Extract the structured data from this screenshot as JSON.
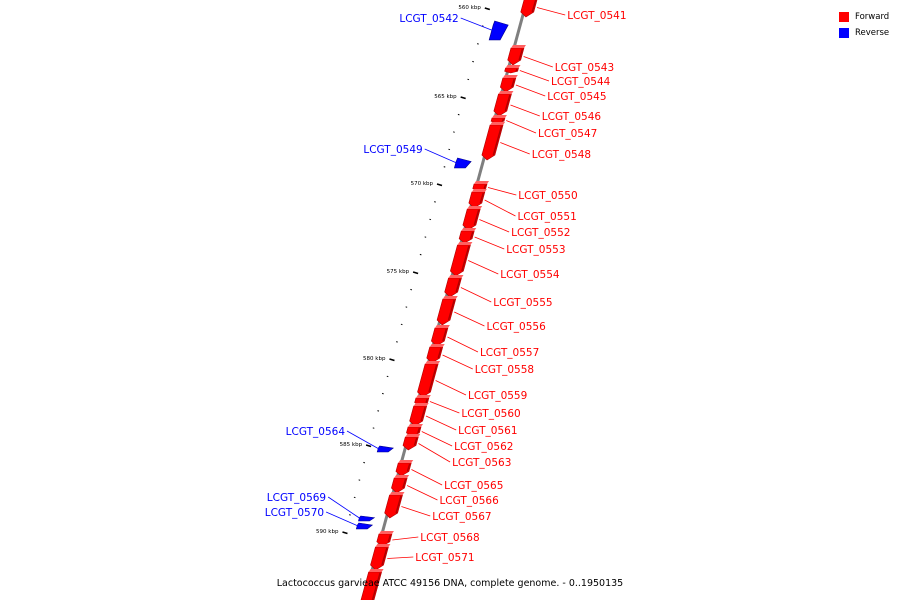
{
  "caption": "Lactococcus garvieae ATCC 49156 DNA, complete genome. - 0..1950135",
  "legend": [
    {
      "label": "Forward",
      "color": "#ff0000"
    },
    {
      "label": "Reverse",
      "color": "#0000ff"
    }
  ],
  "colors": {
    "forward": "#ff0000",
    "forward_dark": "#b00000",
    "reverse": "#0000ff",
    "reverse_dark": "#00008a",
    "backbone": "#7f7f7f"
  },
  "ticks": [
    {
      "label": "560 kbp"
    },
    {
      "label": "565 kbp"
    },
    {
      "label": "570 kbp"
    },
    {
      "label": "575 kbp"
    },
    {
      "label": "580 kbp"
    },
    {
      "label": "585 kbp"
    },
    {
      "label": "590 kbp"
    }
  ],
  "genes": [
    {
      "id": "LCGT_0541",
      "strand": "forward"
    },
    {
      "id": "LCGT_0542",
      "strand": "reverse"
    },
    {
      "id": "LCGT_0543",
      "strand": "forward"
    },
    {
      "id": "LCGT_0544",
      "strand": "forward"
    },
    {
      "id": "LCGT_0545",
      "strand": "forward"
    },
    {
      "id": "LCGT_0546",
      "strand": "forward"
    },
    {
      "id": "LCGT_0547",
      "strand": "forward"
    },
    {
      "id": "LCGT_0548",
      "strand": "forward"
    },
    {
      "id": "LCGT_0549",
      "strand": "reverse"
    },
    {
      "id": "LCGT_0550",
      "strand": "forward"
    },
    {
      "id": "LCGT_0551",
      "strand": "forward"
    },
    {
      "id": "LCGT_0552",
      "strand": "forward"
    },
    {
      "id": "LCGT_0553",
      "strand": "forward"
    },
    {
      "id": "LCGT_0554",
      "strand": "forward"
    },
    {
      "id": "LCGT_0555",
      "strand": "forward"
    },
    {
      "id": "LCGT_0556",
      "strand": "forward"
    },
    {
      "id": "LCGT_0557",
      "strand": "forward"
    },
    {
      "id": "LCGT_0558",
      "strand": "forward"
    },
    {
      "id": "LCGT_0559",
      "strand": "forward"
    },
    {
      "id": "LCGT_0560",
      "strand": "forward"
    },
    {
      "id": "LCGT_0561",
      "strand": "forward"
    },
    {
      "id": "LCGT_0562",
      "strand": "forward"
    },
    {
      "id": "LCGT_0563",
      "strand": "forward"
    },
    {
      "id": "LCGT_0564",
      "strand": "reverse"
    },
    {
      "id": "LCGT_0565",
      "strand": "forward"
    },
    {
      "id": "LCGT_0566",
      "strand": "forward"
    },
    {
      "id": "LCGT_0567",
      "strand": "forward"
    },
    {
      "id": "LCGT_0568",
      "strand": "forward"
    },
    {
      "id": "LCGT_0569",
      "strand": "reverse"
    },
    {
      "id": "LCGT_0570",
      "strand": "reverse"
    },
    {
      "id": "LCGT_0571",
      "strand": "forward"
    },
    {
      "id": "",
      "strand": "forward"
    }
  ]
}
